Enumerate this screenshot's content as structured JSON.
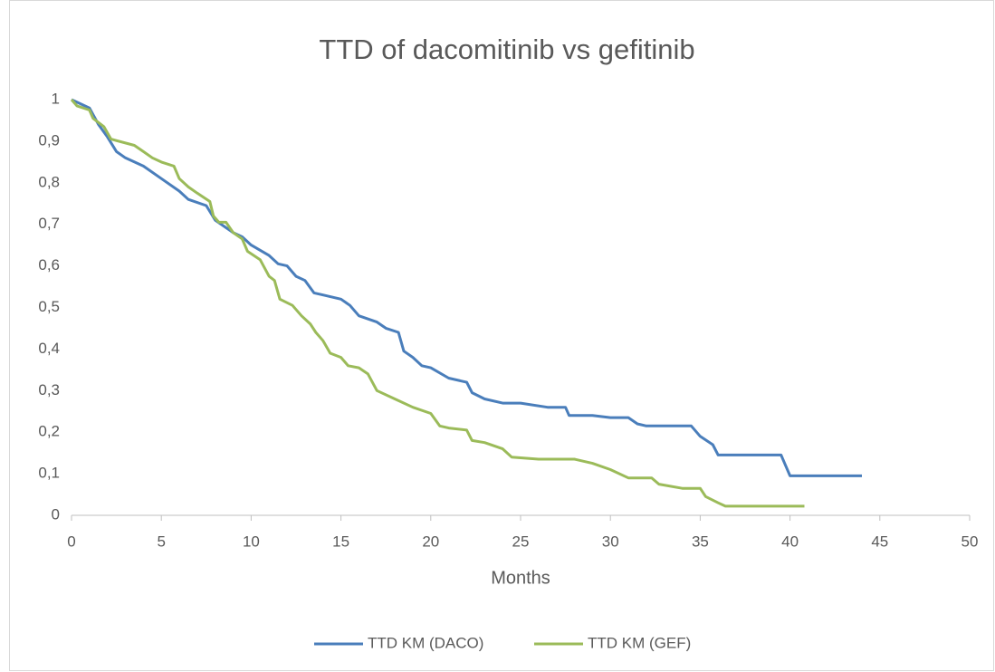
{
  "chart_data": {
    "type": "line",
    "title": "TTD of dacomitinib vs gefitinib",
    "x_label": "Months",
    "xlim": [
      0,
      50
    ],
    "xticks": [
      0,
      5,
      10,
      15,
      20,
      25,
      30,
      35,
      40,
      45,
      50
    ],
    "ylim": [
      0,
      1
    ],
    "yticks": [
      0,
      {
        "value": 0.1,
        "label": "0,1"
      },
      {
        "value": 0.2,
        "label": "0,2"
      },
      {
        "value": 0.3,
        "label": "0,3"
      },
      {
        "value": 0.4,
        "label": "0,4"
      },
      {
        "value": 0.5,
        "label": "0,5"
      },
      {
        "value": 0.6,
        "label": "0,6"
      },
      {
        "value": 0.7,
        "label": "0,7"
      },
      {
        "value": 0.8,
        "label": "0,8"
      },
      {
        "value": 0.9,
        "label": "0,9"
      },
      1
    ],
    "grid": false,
    "legend": "bottom",
    "series": [
      {
        "name": "TTD KM (DACO)",
        "color": "#4a7ebb",
        "x": [
          0,
          0.5,
          1,
          1.5,
          2,
          2.5,
          3,
          4,
          5,
          6,
          6.5,
          7.5,
          8,
          9,
          9.5,
          10,
          11,
          11.5,
          12,
          12.5,
          13,
          13.5,
          14,
          15,
          15.5,
          16,
          17,
          17.5,
          18.2,
          18.5,
          19,
          19.5,
          20,
          21,
          22,
          22.3,
          23,
          24,
          25,
          26.5,
          27.5,
          27.7,
          29,
          30,
          31,
          31.5,
          32,
          34.5,
          35,
          35.7,
          36,
          39.5,
          40,
          44
        ],
        "values": [
          1,
          0.99,
          0.98,
          0.94,
          0.91,
          0.875,
          0.86,
          0.84,
          0.81,
          0.78,
          0.76,
          0.745,
          0.71,
          0.68,
          0.67,
          0.65,
          0.625,
          0.605,
          0.6,
          0.575,
          0.565,
          0.535,
          0.53,
          0.52,
          0.505,
          0.48,
          0.465,
          0.45,
          0.44,
          0.395,
          0.38,
          0.36,
          0.355,
          0.33,
          0.32,
          0.295,
          0.28,
          0.27,
          0.27,
          0.26,
          0.26,
          0.24,
          0.24,
          0.235,
          0.235,
          0.22,
          0.215,
          0.215,
          0.19,
          0.17,
          0.145,
          0.145,
          0.095,
          0.095
        ]
      },
      {
        "name": "TTD KM (GEF)",
        "color": "#9bbb59",
        "x": [
          0,
          0.3,
          1,
          1.2,
          1.8,
          2.2,
          3.5,
          4,
          4.5,
          5,
          5.7,
          6,
          6.5,
          7,
          7.7,
          7.9,
          8.2,
          8.6,
          9,
          9.5,
          9.8,
          10.5,
          11,
          11.3,
          11.6,
          12.3,
          12.8,
          13.3,
          13.6,
          14,
          14.4,
          15,
          15.4,
          16,
          16.5,
          17,
          18,
          19,
          20,
          20.5,
          21,
          22,
          22.3,
          23,
          24,
          24.5,
          26,
          28,
          29,
          30,
          31,
          32.3,
          32.7,
          34,
          35,
          35.3,
          36,
          36.4,
          40.8
        ],
        "values": [
          1,
          0.985,
          0.975,
          0.955,
          0.935,
          0.905,
          0.89,
          0.875,
          0.86,
          0.85,
          0.84,
          0.81,
          0.79,
          0.775,
          0.755,
          0.72,
          0.705,
          0.705,
          0.68,
          0.665,
          0.635,
          0.615,
          0.575,
          0.565,
          0.52,
          0.505,
          0.48,
          0.46,
          0.44,
          0.42,
          0.39,
          0.38,
          0.36,
          0.355,
          0.34,
          0.3,
          0.28,
          0.26,
          0.245,
          0.215,
          0.21,
          0.205,
          0.18,
          0.175,
          0.16,
          0.14,
          0.135,
          0.135,
          0.125,
          0.11,
          0.09,
          0.09,
          0.075,
          0.065,
          0.065,
          0.045,
          0.03,
          0.022,
          0.022
        ]
      }
    ]
  }
}
